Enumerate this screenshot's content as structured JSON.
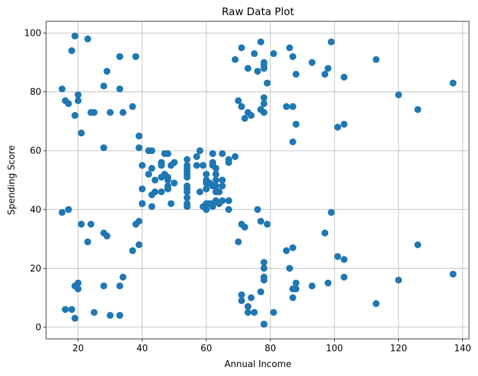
{
  "chart_data": {
    "type": "scatter",
    "title": "Raw Data Plot",
    "xlabel": "Annual Income",
    "ylabel": "Spending Score",
    "xlim": [
      10,
      142
    ],
    "ylim": [
      -4,
      104
    ],
    "xticks": [
      20,
      40,
      60,
      80,
      100,
      120,
      140
    ],
    "yticks": [
      0,
      20,
      40,
      60,
      80,
      100
    ],
    "grid": true,
    "marker_color": "#1f77b4",
    "series": [
      {
        "points": [
          [
            15,
            39
          ],
          [
            15,
            81
          ],
          [
            16,
            6
          ],
          [
            16,
            77
          ],
          [
            17,
            40
          ],
          [
            17,
            76
          ],
          [
            18,
            6
          ],
          [
            18,
            94
          ],
          [
            19,
            3
          ],
          [
            19,
            72
          ],
          [
            19,
            14
          ],
          [
            19,
            99
          ],
          [
            20,
            15
          ],
          [
            20,
            77
          ],
          [
            20,
            13
          ],
          [
            20,
            79
          ],
          [
            21,
            35
          ],
          [
            21,
            66
          ],
          [
            23,
            29
          ],
          [
            23,
            98
          ],
          [
            24,
            35
          ],
          [
            24,
            73
          ],
          [
            25,
            5
          ],
          [
            25,
            73
          ],
          [
            28,
            14
          ],
          [
            28,
            82
          ],
          [
            28,
            32
          ],
          [
            28,
            61
          ],
          [
            29,
            31
          ],
          [
            29,
            87
          ],
          [
            30,
            4
          ],
          [
            30,
            73
          ],
          [
            33,
            4
          ],
          [
            33,
            92
          ],
          [
            33,
            14
          ],
          [
            33,
            81
          ],
          [
            34,
            17
          ],
          [
            34,
            73
          ],
          [
            37,
            26
          ],
          [
            37,
            75
          ],
          [
            38,
            35
          ],
          [
            38,
            92
          ],
          [
            39,
            36
          ],
          [
            39,
            61
          ],
          [
            39,
            28
          ],
          [
            39,
            65
          ],
          [
            40,
            55
          ],
          [
            40,
            47
          ],
          [
            40,
            42
          ],
          [
            40,
            42
          ],
          [
            42,
            52
          ],
          [
            42,
            60
          ],
          [
            43,
            54
          ],
          [
            43,
            60
          ],
          [
            43,
            45
          ],
          [
            43,
            41
          ],
          [
            44,
            50
          ],
          [
            44,
            46
          ],
          [
            46,
            51
          ],
          [
            46,
            46
          ],
          [
            46,
            56
          ],
          [
            46,
            55
          ],
          [
            47,
            52
          ],
          [
            47,
            59
          ],
          [
            48,
            51
          ],
          [
            48,
            59
          ],
          [
            48,
            50
          ],
          [
            48,
            48
          ],
          [
            48,
            59
          ],
          [
            48,
            47
          ],
          [
            49,
            55
          ],
          [
            49,
            42
          ],
          [
            50,
            49
          ],
          [
            50,
            56
          ],
          [
            54,
            47
          ],
          [
            54,
            54
          ],
          [
            54,
            53
          ],
          [
            54,
            48
          ],
          [
            54,
            52
          ],
          [
            54,
            42
          ],
          [
            54,
            51
          ],
          [
            54,
            55
          ],
          [
            54,
            41
          ],
          [
            54,
            44
          ],
          [
            54,
            57
          ],
          [
            54,
            46
          ],
          [
            57,
            58
          ],
          [
            57,
            55
          ],
          [
            58,
            60
          ],
          [
            58,
            46
          ],
          [
            59,
            55
          ],
          [
            59,
            41
          ],
          [
            60,
            49
          ],
          [
            60,
            40
          ],
          [
            60,
            42
          ],
          [
            60,
            52
          ],
          [
            60,
            47
          ],
          [
            60,
            50
          ],
          [
            61,
            42
          ],
          [
            61,
            49
          ],
          [
            62,
            41
          ],
          [
            62,
            48
          ],
          [
            62,
            59
          ],
          [
            62,
            55
          ],
          [
            62,
            56
          ],
          [
            62,
            42
          ],
          [
            63,
            50
          ],
          [
            63,
            46
          ],
          [
            63,
            43
          ],
          [
            63,
            48
          ],
          [
            63,
            52
          ],
          [
            63,
            54
          ],
          [
            64,
            42
          ],
          [
            64,
            46
          ],
          [
            65,
            48
          ],
          [
            65,
            50
          ],
          [
            65,
            43
          ],
          [
            65,
            59
          ],
          [
            67,
            43
          ],
          [
            67,
            57
          ],
          [
            67,
            56
          ],
          [
            67,
            40
          ],
          [
            69,
            58
          ],
          [
            69,
            91
          ],
          [
            70,
            29
          ],
          [
            70,
            77
          ],
          [
            71,
            35
          ],
          [
            71,
            95
          ],
          [
            71,
            11
          ],
          [
            71,
            75
          ],
          [
            71,
            9
          ],
          [
            71,
            75
          ],
          [
            72,
            34
          ],
          [
            72,
            71
          ],
          [
            73,
            5
          ],
          [
            73,
            88
          ],
          [
            73,
            7
          ],
          [
            73,
            73
          ],
          [
            74,
            10
          ],
          [
            74,
            72
          ],
          [
            75,
            5
          ],
          [
            75,
            93
          ],
          [
            76,
            40
          ],
          [
            76,
            87
          ],
          [
            77,
            12
          ],
          [
            77,
            97
          ],
          [
            77,
            36
          ],
          [
            77,
            74
          ],
          [
            78,
            22
          ],
          [
            78,
            90
          ],
          [
            78,
            17
          ],
          [
            78,
            88
          ],
          [
            78,
            20
          ],
          [
            78,
            76
          ],
          [
            78,
            16
          ],
          [
            78,
            89
          ],
          [
            78,
            1
          ],
          [
            78,
            78
          ],
          [
            78,
            1
          ],
          [
            78,
            73
          ],
          [
            79,
            35
          ],
          [
            79,
            83
          ],
          [
            81,
            5
          ],
          [
            81,
            93
          ],
          [
            85,
            26
          ],
          [
            85,
            75
          ],
          [
            86,
            20
          ],
          [
            86,
            95
          ],
          [
            87,
            27
          ],
          [
            87,
            63
          ],
          [
            87,
            13
          ],
          [
            87,
            75
          ],
          [
            87,
            10
          ],
          [
            87,
            92
          ],
          [
            88,
            13
          ],
          [
            88,
            86
          ],
          [
            88,
            15
          ],
          [
            88,
            69
          ],
          [
            93,
            14
          ],
          [
            93,
            90
          ],
          [
            97,
            32
          ],
          [
            97,
            86
          ],
          [
            98,
            15
          ],
          [
            98,
            88
          ],
          [
            99,
            39
          ],
          [
            99,
            97
          ],
          [
            101,
            24
          ],
          [
            101,
            68
          ],
          [
            103,
            17
          ],
          [
            103,
            85
          ],
          [
            103,
            23
          ],
          [
            103,
            69
          ],
          [
            113,
            8
          ],
          [
            113,
            91
          ],
          [
            120,
            16
          ],
          [
            120,
            79
          ],
          [
            126,
            28
          ],
          [
            126,
            74
          ],
          [
            137,
            18
          ],
          [
            137,
            83
          ]
        ]
      }
    ]
  }
}
